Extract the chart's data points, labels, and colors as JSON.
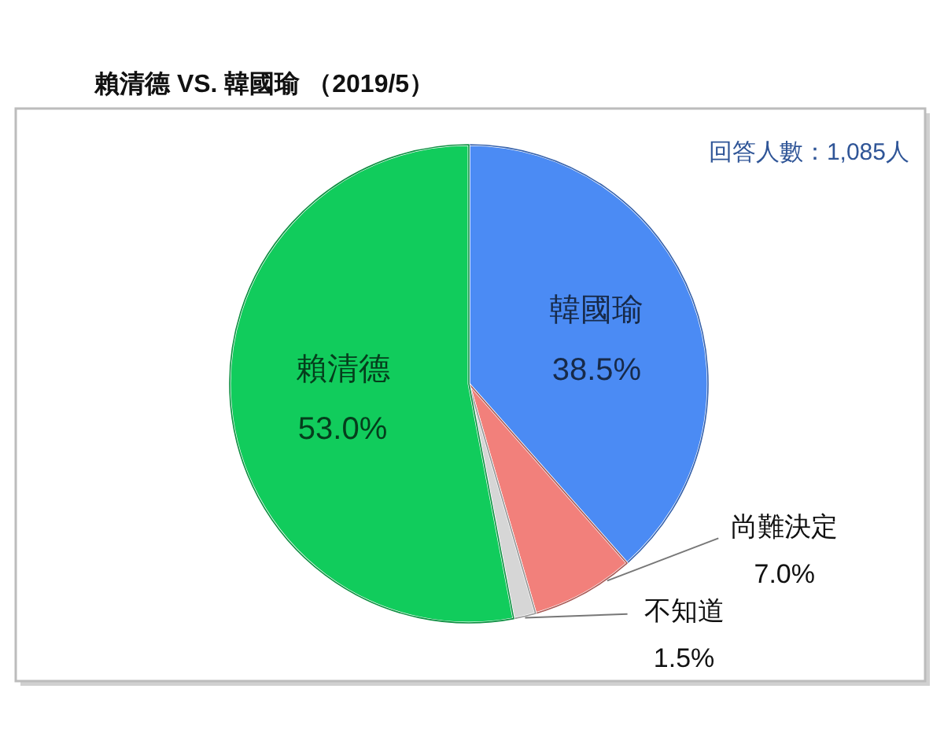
{
  "chart_data": {
    "type": "pie",
    "title": "賴清德 VS. 韓國瑜 （2019/5）",
    "categories": [
      "韓國瑜",
      "尚難決定",
      "不知道",
      "賴清德"
    ],
    "values": [
      38.5,
      7.0,
      1.5,
      53.0
    ],
    "value_labels": [
      "38.5%",
      "7.0%",
      "1.5%",
      "53.0%"
    ],
    "colors": [
      "#4b8bf4",
      "#f2807b",
      "#d6d6d6",
      "#11cc5c"
    ],
    "annotations": [
      "回答人數：1,085人"
    ]
  }
}
